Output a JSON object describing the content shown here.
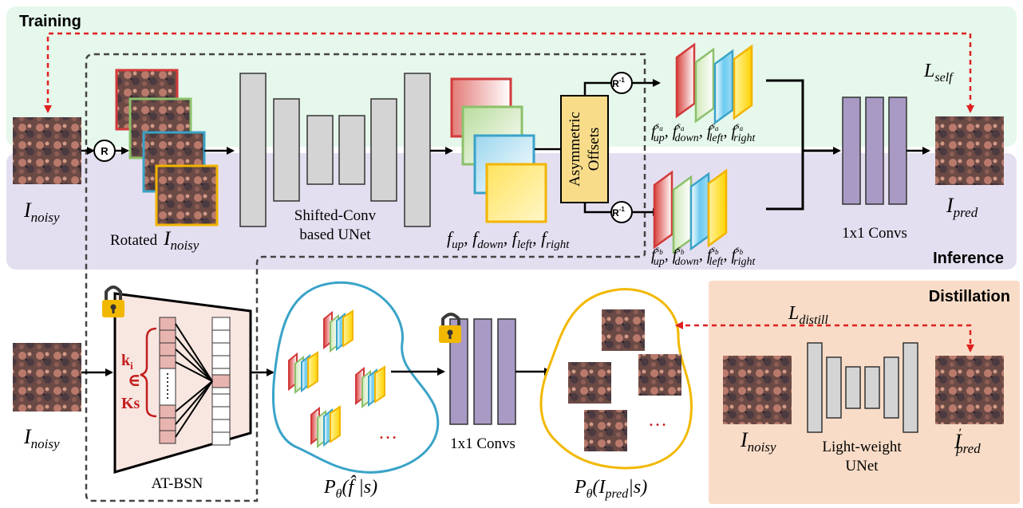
{
  "colors": {
    "training_bg": "#e6f7ec",
    "inference_bg": "#e4dff0",
    "distill_bg": "#f9dcc7",
    "unet_block": "#d4d4d4",
    "conv_purple": "#a89ac4",
    "red_dash": "#e02020",
    "cloud_blue": "#3aa3c8",
    "cloud_yellow": "#f2c200",
    "offset_box": "#f8dc8a",
    "bsn_fill": "#f8e6e0",
    "bsn_cell": "#e8b4b0",
    "lock": "#f2b800",
    "kset_red": "#c41e1e"
  },
  "sections": {
    "training": "Training",
    "inference": "Inference",
    "distillation": "Distillation"
  },
  "labels": {
    "i_noisy": "I",
    "i_noisy_sub": "noisy",
    "i_pred": "I",
    "i_pred_sub": "pred",
    "i_pred_prime": "′",
    "rotated": "Rotated",
    "unet_line1": "Shifted-Conv",
    "unet_line2": "based UNet",
    "offset_line1": "Asymmetric",
    "offset_line2": "Offsets",
    "f_label": "f",
    "f_subs": [
      "up",
      "down",
      "left",
      "right"
    ],
    "f_sa": "s",
    "f_sa_sub": "a",
    "f_sb": "s",
    "f_sb_sub": "b",
    "conv_top": "1x1 Convs",
    "conv_bottom": "1x1 Convs",
    "l_self": "L",
    "l_self_sub": "self",
    "l_distill": "L",
    "l_distill_sub": "distill",
    "at_bsn": "AT-BSN",
    "k_i": "k",
    "k_i_sub": "i",
    "in_sym": "∈",
    "k_set": "Ks",
    "p_f": "P",
    "p_f_sub": "θ",
    "p_f_arg": "(f̂ |s)",
    "p_pred": "P",
    "p_pred_sub": "θ",
    "p_pred_arg1": "(I",
    "p_pred_arg_sub": "pred",
    "p_pred_arg2": "|s)",
    "ellipsis": "…",
    "light_line1": "Light-weight",
    "light_line2": "UNet",
    "rot_R": "R",
    "rot_R_inv": "R",
    "rot_R_inv_sup": "-1"
  }
}
